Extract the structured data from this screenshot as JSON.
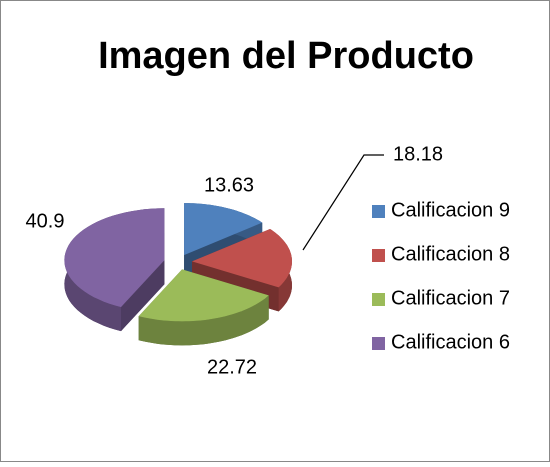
{
  "chart_data": {
    "type": "pie",
    "title": "Imagen del Producto",
    "categories": [
      "Calificacion 9",
      "Calificacion 8",
      "Calificacion 7",
      "Calificacion 6"
    ],
    "values": [
      13.63,
      18.18,
      22.72,
      40.9
    ],
    "colors": [
      "#4f81bd",
      "#c0504d",
      "#9bbb59",
      "#8064a2"
    ]
  }
}
